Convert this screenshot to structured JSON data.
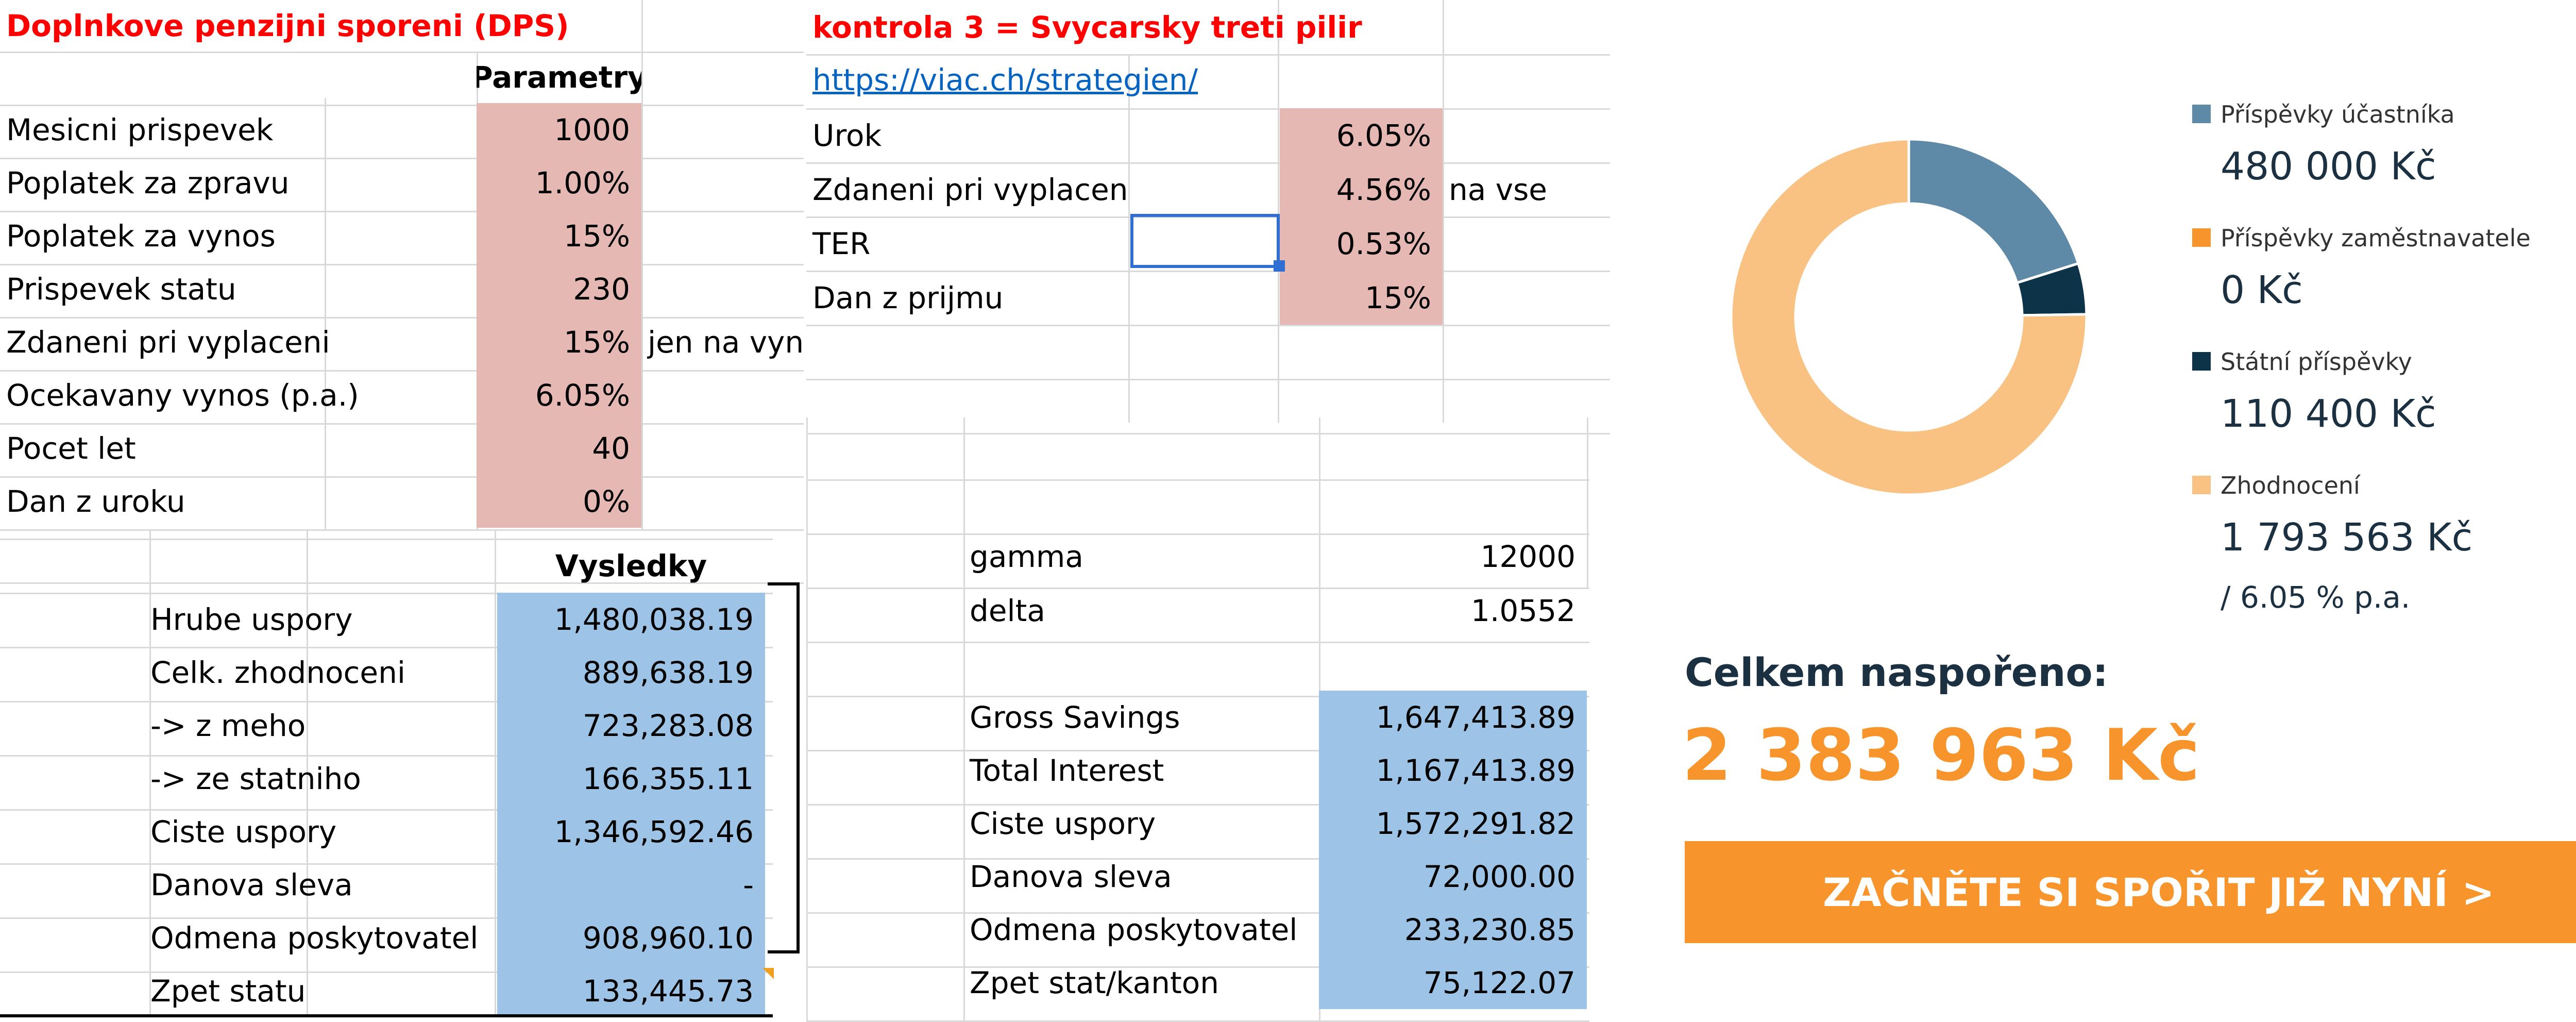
{
  "dps": {
    "title": "Doplnkove penzijni sporeni (DPS)",
    "params_header": "Parametry",
    "params": [
      {
        "label": "Mesicni prispevek",
        "value": "1000"
      },
      {
        "label": "Poplatek za zpravu",
        "value": "1.00%"
      },
      {
        "label": "Poplatek za vynos",
        "value": "15%"
      },
      {
        "label": "Prispevek statu",
        "value": "230"
      },
      {
        "label": "Zdaneni pri vyplaceni",
        "value": "15%",
        "note": "jen na vyn"
      },
      {
        "label": "Ocekavany vynos (p.a.)",
        "value": "6.05%"
      },
      {
        "label": "Pocet let",
        "value": "40"
      },
      {
        "label": "Dan z uroku",
        "value": "0%"
      }
    ],
    "results_header": "Vysledky",
    "results": [
      {
        "label": "Hrube uspory",
        "value": "1,480,038.19"
      },
      {
        "label": "Celk. zhodnoceni",
        "value": "889,638.19"
      },
      {
        "label": "-> z meho",
        "value": "723,283.08"
      },
      {
        "label": "-> ze statniho",
        "value": "166,355.11"
      },
      {
        "label": "Ciste uspory",
        "value": "1,346,592.46"
      },
      {
        "label": "Danova sleva",
        "value": "-"
      },
      {
        "label": "Odmena poskytovatel",
        "value": "908,960.10"
      },
      {
        "label": "Zpet statu",
        "value": "133,445.73"
      }
    ]
  },
  "swiss": {
    "title": "kontrola 3 = Svycarsky treti pilir",
    "link": "https://viac.ch/strategien/",
    "params": [
      {
        "label": "Urok",
        "value": "6.05%"
      },
      {
        "label": "Zdaneni pri vyplaceni",
        "value": "4.56%",
        "note": "na vse"
      },
      {
        "label": "TER",
        "value": "0.53%"
      },
      {
        "label": "Dan z prijmu",
        "value": "15%"
      }
    ],
    "gamma": {
      "label": "gamma",
      "value": "12000"
    },
    "delta": {
      "label": "delta",
      "value": "1.0552"
    },
    "results": [
      {
        "label": "Gross Savings",
        "value": "1,647,413.89"
      },
      {
        "label": "Total Interest",
        "value": "1,167,413.89"
      },
      {
        "label": "Ciste uspory",
        "value": "1,572,291.82"
      },
      {
        "label": "Danova sleva",
        "value": "72,000.00"
      },
      {
        "label": "Odmena poskytovatel",
        "value": "233,230.85"
      },
      {
        "label": "Zpet stat/kanton",
        "value": "75,122.07"
      }
    ]
  },
  "calculator": {
    "legend": [
      {
        "name": "Příspěvky účastníka",
        "value": "480 000 Kč",
        "color": "#5f8aa7",
        "amount": 480000
      },
      {
        "name": "Příspěvky zaměstnavatele",
        "value": "0 Kč",
        "color": "#f7952c",
        "amount": 0
      },
      {
        "name": "Státní příspěvky",
        "value": "110 400 Kč",
        "color": "#0d3349",
        "amount": 110400
      },
      {
        "name": "Zhodnocení",
        "value": "1 793 563 Kč",
        "color": "#f9c283",
        "amount": 1793563
      }
    ],
    "rate_note": "/ 6.05 % p.a.",
    "total_label": "Celkem naspořeno:",
    "total_value": "2 383 963 Kč",
    "cta_label": "ZAČNĚTE SI SPOŘIT JIŽ NYNÍ >"
  }
}
